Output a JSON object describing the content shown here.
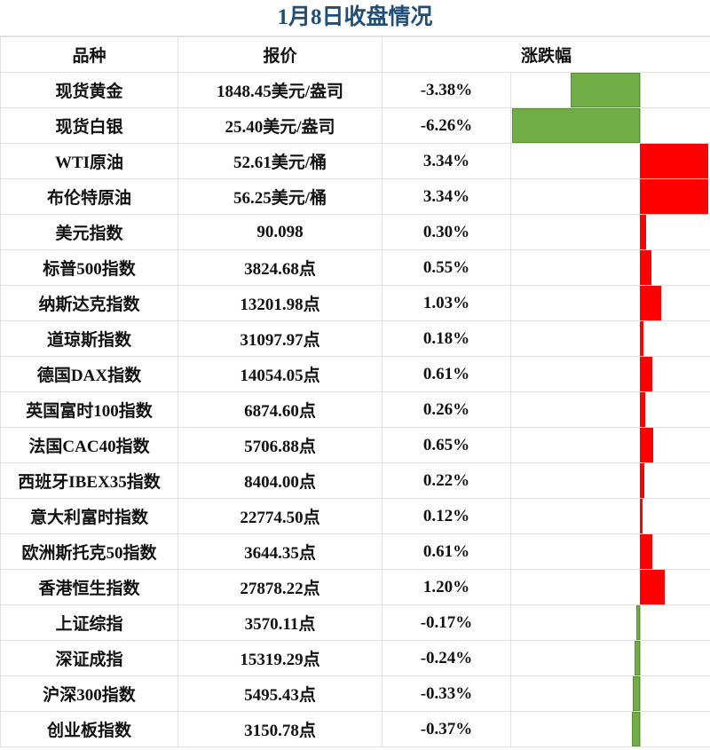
{
  "title": "1月8日收盘情况",
  "headers": [
    "品种",
    "报价",
    "涨跌幅"
  ],
  "colors": {
    "title": "#1f4e79",
    "positive": "#ff0000",
    "negative": "#70ad47"
  },
  "chart_data": {
    "type": "table",
    "bar_column": "涨跌幅",
    "rows": [
      {
        "name": "现货黄金",
        "price": "1848.45美元/盎司",
        "change_label": "-3.38%",
        "change": -3.38
      },
      {
        "name": "现货白银",
        "price": "25.40美元/盎司",
        "change_label": "-6.26%",
        "change": -6.26
      },
      {
        "name": "WTI原油",
        "price": "52.61美元/桶",
        "change_label": "3.34%",
        "change": 3.34
      },
      {
        "name": "布伦特原油",
        "price": "56.25美元/桶",
        "change_label": "3.34%",
        "change": 3.34
      },
      {
        "name": "美元指数",
        "price": "90.098",
        "change_label": "0.30%",
        "change": 0.3
      },
      {
        "name": "标普500指数",
        "price": "3824.68点",
        "change_label": "0.55%",
        "change": 0.55
      },
      {
        "name": "纳斯达克指数",
        "price": "13201.98点",
        "change_label": "1.03%",
        "change": 1.03
      },
      {
        "name": "道琼斯指数",
        "price": "31097.97点",
        "change_label": "0.18%",
        "change": 0.18
      },
      {
        "name": "德国DAX指数",
        "price": "14054.05点",
        "change_label": "0.61%",
        "change": 0.61
      },
      {
        "name": "英国富时100指数",
        "price": "6874.60点",
        "change_label": "0.26%",
        "change": 0.26
      },
      {
        "name": "法国CAC40指数",
        "price": "5706.88点",
        "change_label": "0.65%",
        "change": 0.65
      },
      {
        "name": "西班牙IBEX35指数",
        "price": "8404.00点",
        "change_label": "0.22%",
        "change": 0.22
      },
      {
        "name": "意大利富时指数",
        "price": "22774.50点",
        "change_label": "0.12%",
        "change": 0.12
      },
      {
        "name": "欧洲斯托克50指数",
        "price": "3644.35点",
        "change_label": "0.61%",
        "change": 0.61
      },
      {
        "name": "香港恒生指数",
        "price": "27878.22点",
        "change_label": "1.20%",
        "change": 1.2
      },
      {
        "name": "上证综指",
        "price": "3570.11点",
        "change_label": "-0.17%",
        "change": -0.17
      },
      {
        "name": "深证成指",
        "price": "15319.29点",
        "change_label": "-0.24%",
        "change": -0.24
      },
      {
        "name": "沪深300指数",
        "price": "5495.43点",
        "change_label": "-0.33%",
        "change": -0.33
      },
      {
        "name": "创业板指数",
        "price": "3150.78点",
        "change_label": "-0.37%",
        "change": -0.37
      }
    ]
  }
}
